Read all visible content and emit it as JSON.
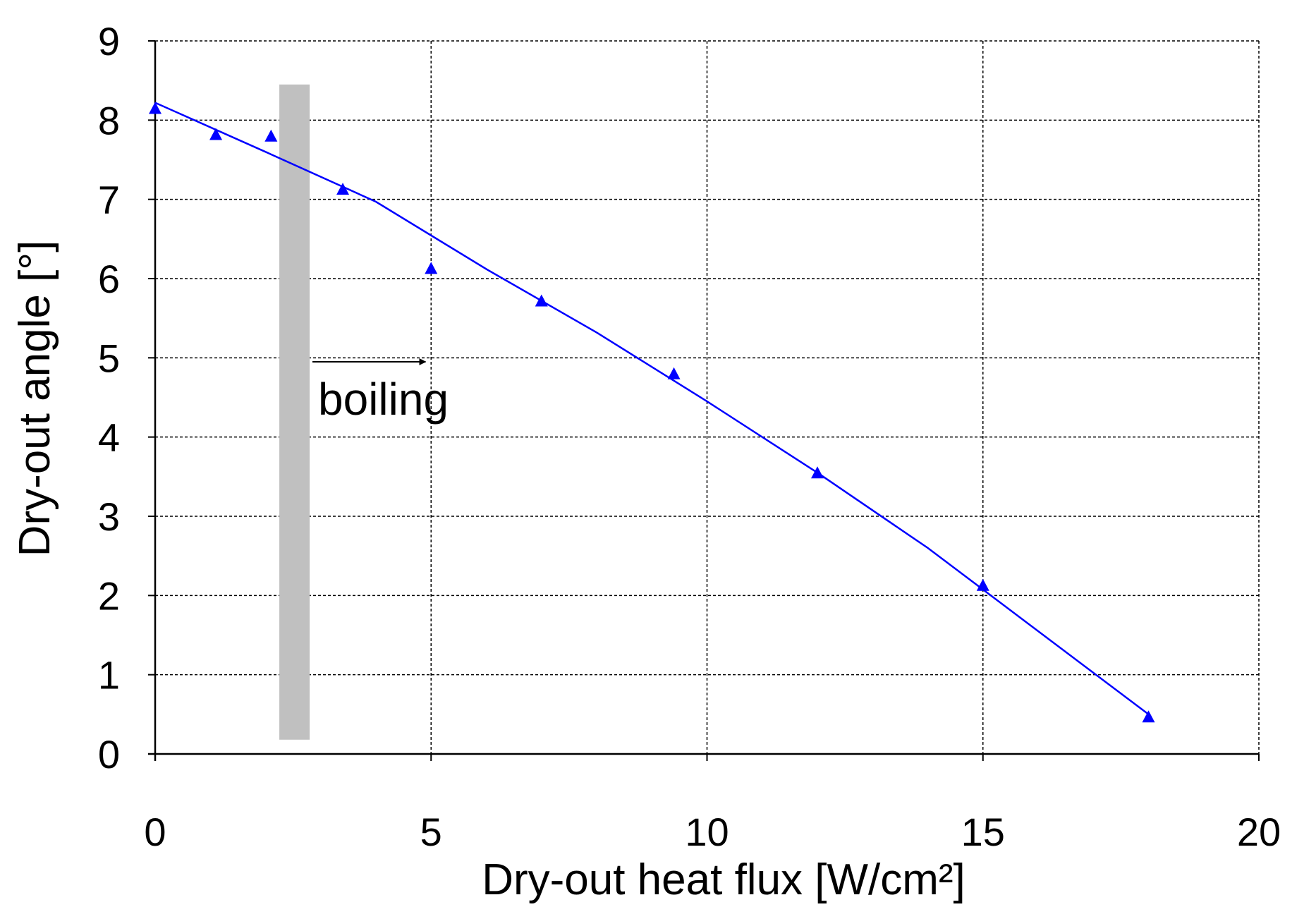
{
  "chart_data": {
    "type": "scatter",
    "title": "",
    "xlabel": "Dry-out heat flux [W/cm²]",
    "ylabel": "Dry-out angle [°]",
    "xlim": [
      0,
      20
    ],
    "ylim": [
      0,
      9
    ],
    "x_ticks": [
      0,
      5,
      10,
      15,
      20
    ],
    "y_ticks": [
      0,
      1,
      2,
      3,
      4,
      5,
      6,
      7,
      8,
      9
    ],
    "grid": "dashed, both axes",
    "legend": "none",
    "marker_color": "#0000ff",
    "series": [
      {
        "marker": "triangle",
        "x": [
          0,
          1.1,
          2.1,
          3.4,
          5.0,
          7.0,
          9.4,
          12.0,
          15.0,
          18.0
        ],
        "y": [
          8.15,
          7.82,
          7.8,
          7.13,
          6.13,
          5.72,
          4.8,
          3.55,
          2.13,
          0.47
        ]
      }
    ],
    "trendline": {
      "color": "#0000ff",
      "x": [
        0,
        2,
        4,
        6,
        8,
        10,
        12,
        14,
        16,
        18
      ],
      "y": [
        8.22,
        7.6,
        6.97,
        6.12,
        5.32,
        4.45,
        3.55,
        2.6,
        1.55,
        0.5
      ]
    },
    "shaded_band": {
      "color": "#c0c0c0",
      "x_from": 2.25,
      "x_to": 2.8,
      "y_from": 0.18,
      "y_to": 8.45
    },
    "annotation": {
      "text": "boiling",
      "arrow_x_from": 2.85,
      "arrow_x_to": 4.9,
      "arrow_y": 4.95
    }
  }
}
